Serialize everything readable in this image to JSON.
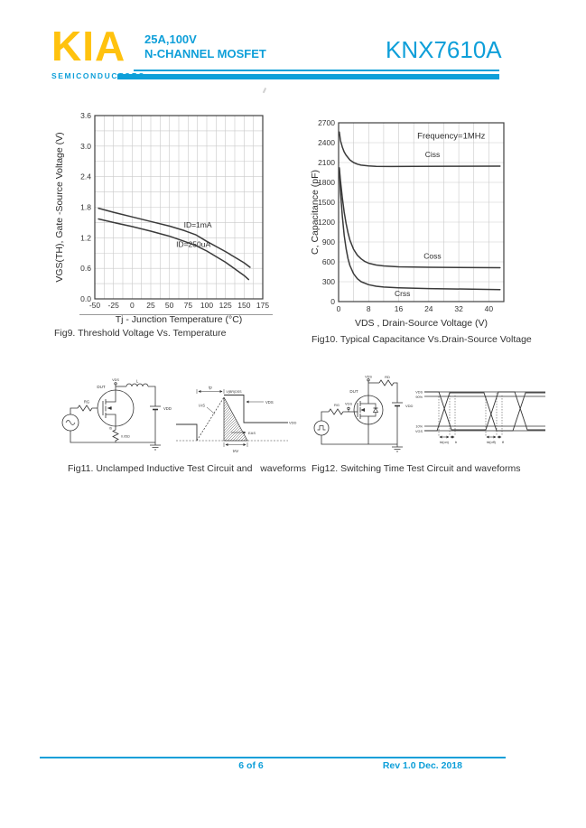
{
  "header": {
    "logo": "KIA",
    "logo_subtitle": "SEMICONDUCTORS",
    "spec_line1": "25A,100V",
    "spec_line2": "N-CHANNEL MOSFET",
    "part_number": "KNX7610A",
    "accent_color": "#0e9fd9",
    "logo_color": "#ffc20e"
  },
  "footer": {
    "page_info": "6 of 6",
    "revision": "Rev 1.0 Dec. 2018"
  },
  "figures": {
    "fig9_caption": "Fig9. Threshold Voltage Vs. Temperature",
    "fig10_caption": "Fig10. Typical Capacitance Vs.Drain-Source Voltage",
    "fig11_caption": "Fig11. Unclamped Inductive Test Circuit and   waveforms",
    "fig12_caption": "Fig12. Switching Time Test Circuit and waveforms"
  },
  "chart_data": [
    {
      "type": "line",
      "title": "Threshold Voltage Vs. Temperature",
      "xlabel": "Tj - Junction Temperature (°C)",
      "ylabel": "VGS(TH), Gate -Source Voltage (V)",
      "xlim": [
        -50,
        175
      ],
      "ylim": [
        0,
        3.6
      ],
      "xticks": [
        -50,
        -25,
        0,
        25,
        50,
        75,
        100,
        125,
        150,
        175
      ],
      "xtick_labels": [
        "-50",
        "-25",
        "0",
        "25",
        "50",
        "75",
        "100",
        "125",
        "150",
        "175"
      ],
      "yticks": [
        0,
        0.6,
        1.2,
        1.8,
        2.4,
        3.0,
        3.6
      ],
      "ytick_labels": [
        "0.0",
        "0.6",
        "1.2",
        "1.8",
        "2.4",
        "3.0",
        "3.6"
      ],
      "x_minor_step": 12.5,
      "y_minor_step": 0.3,
      "grid": true,
      "legend_position": "inline-labels",
      "series": [
        {
          "name": "ID=1mA",
          "label_at": [
            88,
            1.4
          ],
          "points": [
            [
              -45,
              1.78
            ],
            [
              -25,
              1.7
            ],
            [
              0,
              1.61
            ],
            [
              25,
              1.52
            ],
            [
              50,
              1.43
            ],
            [
              70,
              1.34
            ],
            [
              85,
              1.26
            ],
            [
              100,
              1.13
            ],
            [
              125,
              0.93
            ],
            [
              150,
              0.71
            ],
            [
              158,
              0.62
            ]
          ]
        },
        {
          "name": "ID=250uA",
          "label_at": [
            82,
            1.02
          ],
          "points": [
            [
              -45,
              1.57
            ],
            [
              -25,
              1.5
            ],
            [
              0,
              1.42
            ],
            [
              25,
              1.33
            ],
            [
              50,
              1.23
            ],
            [
              70,
              1.13
            ],
            [
              85,
              1.05
            ],
            [
              100,
              0.94
            ],
            [
              125,
              0.72
            ],
            [
              150,
              0.46
            ],
            [
              156,
              0.38
            ]
          ]
        }
      ]
    },
    {
      "type": "line",
      "title": "Typical Capacitance Vs.Drain-Source Voltage",
      "xlabel": "VDS , Drain-Source Voltage (V)",
      "ylabel": "C, Capacitance (pF)",
      "annotation": "Frequency=1MHz",
      "annotation_at": [
        30,
        2460
      ],
      "xlim": [
        0,
        44
      ],
      "ylim": [
        0,
        2700
      ],
      "xticks": [
        0,
        8,
        16,
        24,
        32,
        40
      ],
      "xtick_labels": [
        "0",
        "8",
        "16",
        "24",
        "32",
        "40"
      ],
      "yticks": [
        0,
        300,
        600,
        900,
        1200,
        1500,
        1800,
        2100,
        2400,
        2700
      ],
      "ytick_labels": [
        "0",
        "300",
        "600",
        "900",
        "1200",
        "1500",
        "1800",
        "2100",
        "2400",
        "2700"
      ],
      "x_minor_step": 4,
      "y_minor_step": 300,
      "grid": true,
      "legend_position": "inline-labels",
      "series": [
        {
          "name": "Ciss",
          "label_at": [
            25,
            2180
          ],
          "points": [
            [
              0.2,
              2560
            ],
            [
              0.5,
              2430
            ],
            [
              1,
              2330
            ],
            [
              1.5,
              2260
            ],
            [
              2,
              2210
            ],
            [
              3,
              2140
            ],
            [
              4,
              2100
            ],
            [
              5,
              2075
            ],
            [
              6,
              2060
            ],
            [
              8,
              2048
            ],
            [
              10,
              2042
            ],
            [
              14,
              2040
            ],
            [
              20,
              2042
            ],
            [
              30,
              2044
            ],
            [
              43,
              2046
            ]
          ]
        },
        {
          "name": "Coss",
          "label_at": [
            25,
            650
          ],
          "points": [
            [
              0.2,
              2020
            ],
            [
              0.5,
              1820
            ],
            [
              1,
              1560
            ],
            [
              1.5,
              1350
            ],
            [
              2,
              1180
            ],
            [
              2.5,
              1040
            ],
            [
              3,
              930
            ],
            [
              4,
              790
            ],
            [
              5,
              700
            ],
            [
              6,
              645
            ],
            [
              7,
              605
            ],
            [
              8,
              580
            ],
            [
              10,
              552
            ],
            [
              12,
              538
            ],
            [
              16,
              525
            ],
            [
              24,
              518
            ],
            [
              43,
              512
            ]
          ]
        },
        {
          "name": "Crss",
          "label_at": [
            17,
            85
          ],
          "points": [
            [
              0.2,
              2000
            ],
            [
              0.5,
              1650
            ],
            [
              1,
              1280
            ],
            [
              1.5,
              1000
            ],
            [
              2,
              800
            ],
            [
              2.5,
              650
            ],
            [
              3,
              545
            ],
            [
              4,
              420
            ],
            [
              5,
              345
            ],
            [
              6,
              300
            ],
            [
              8,
              255
            ],
            [
              10,
              232
            ],
            [
              12,
              220
            ],
            [
              16,
              208
            ],
            [
              24,
              196
            ],
            [
              43,
              182
            ]
          ]
        }
      ]
    }
  ],
  "circuit11": {
    "dut": "DUT",
    "rg": "RG",
    "vds": "VDS",
    "l": "L",
    "vdd": "VDD",
    "is": "IS",
    "shunt": "0.05Ω"
  },
  "wave11": {
    "tp": "tp",
    "ias": "IAS",
    "vbrdss": "V(BR)DSS",
    "vds": "VDS",
    "vdd": "VDD",
    "eas": "EAS",
    "tav": "tAV"
  },
  "circuit12": {
    "dut": "DUT",
    "rg": "RG",
    "vgs": "VGS",
    "vds": "VDS",
    "rd": "RD",
    "vdd": "VDD"
  },
  "wave12": {
    "vds": "VDS",
    "p90": "90%",
    "p10": "10%",
    "vgs": "VGS",
    "tdon": "td(on)",
    "tr": "tr",
    "tdoff": "td(off)",
    "tf": "tf"
  }
}
